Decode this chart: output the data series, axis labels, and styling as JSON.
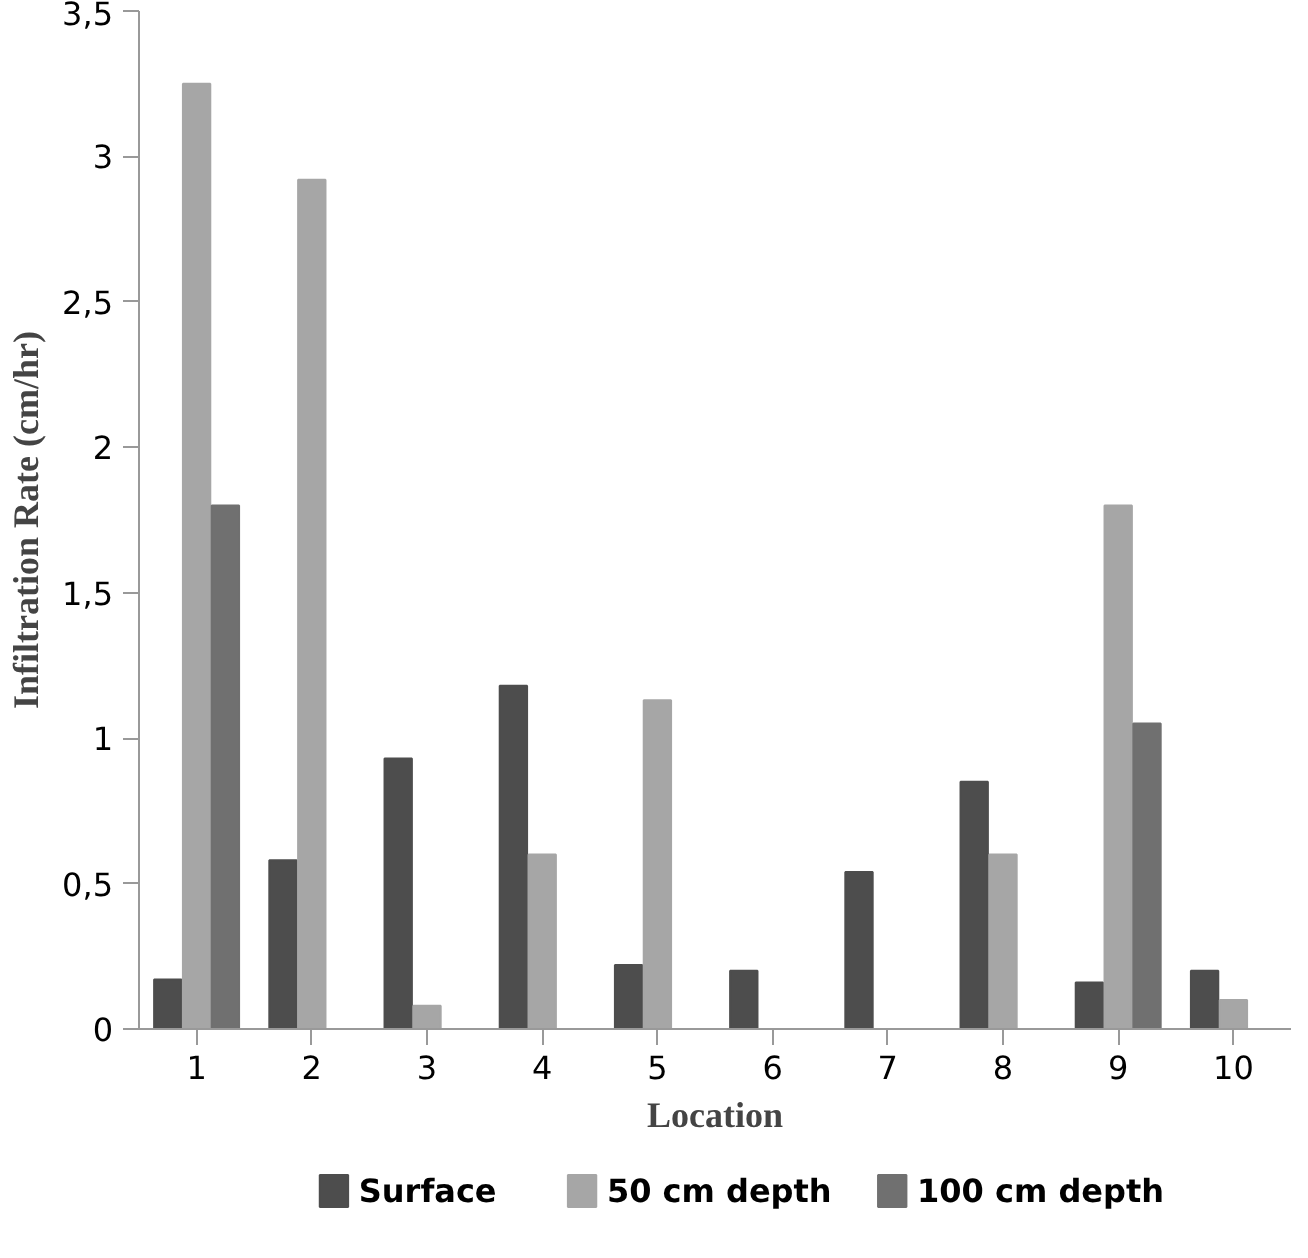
{
  "chart_data": {
    "type": "bar",
    "xlabel": "Location",
    "ylabel": "Infiltration Rate (cm/hr)",
    "categories": [
      "1",
      "2",
      "3",
      "4",
      "5",
      "6",
      "7",
      "8",
      "9",
      "10"
    ],
    "series": [
      {
        "name": "Surface",
        "color": "#4d4d4d",
        "values": [
          0.17,
          0.58,
          0.93,
          1.18,
          0.22,
          0.2,
          0.54,
          0.85,
          0.16,
          0.2
        ]
      },
      {
        "name": "50 cm depth",
        "color": "#a6a6a6",
        "values": [
          3.25,
          2.92,
          0.08,
          0.6,
          1.13,
          0,
          0,
          0.6,
          1.8,
          0.1
        ]
      },
      {
        "name": "100 cm depth",
        "color": "#707070",
        "values": [
          1.8,
          0,
          0,
          0,
          0,
          0,
          0,
          0,
          1.05,
          0
        ]
      }
    ],
    "ylim": [
      0,
      3.5
    ],
    "yticks": [
      0,
      {
        "value": 0.5,
        "label": "0,5"
      },
      1,
      {
        "value": 1.5,
        "label": "1,5"
      },
      2,
      {
        "value": 2.5,
        "label": "2,5"
      },
      3,
      {
        "value": 3.5,
        "label": "3,5"
      }
    ],
    "grid": false,
    "legend": "bottom"
  }
}
